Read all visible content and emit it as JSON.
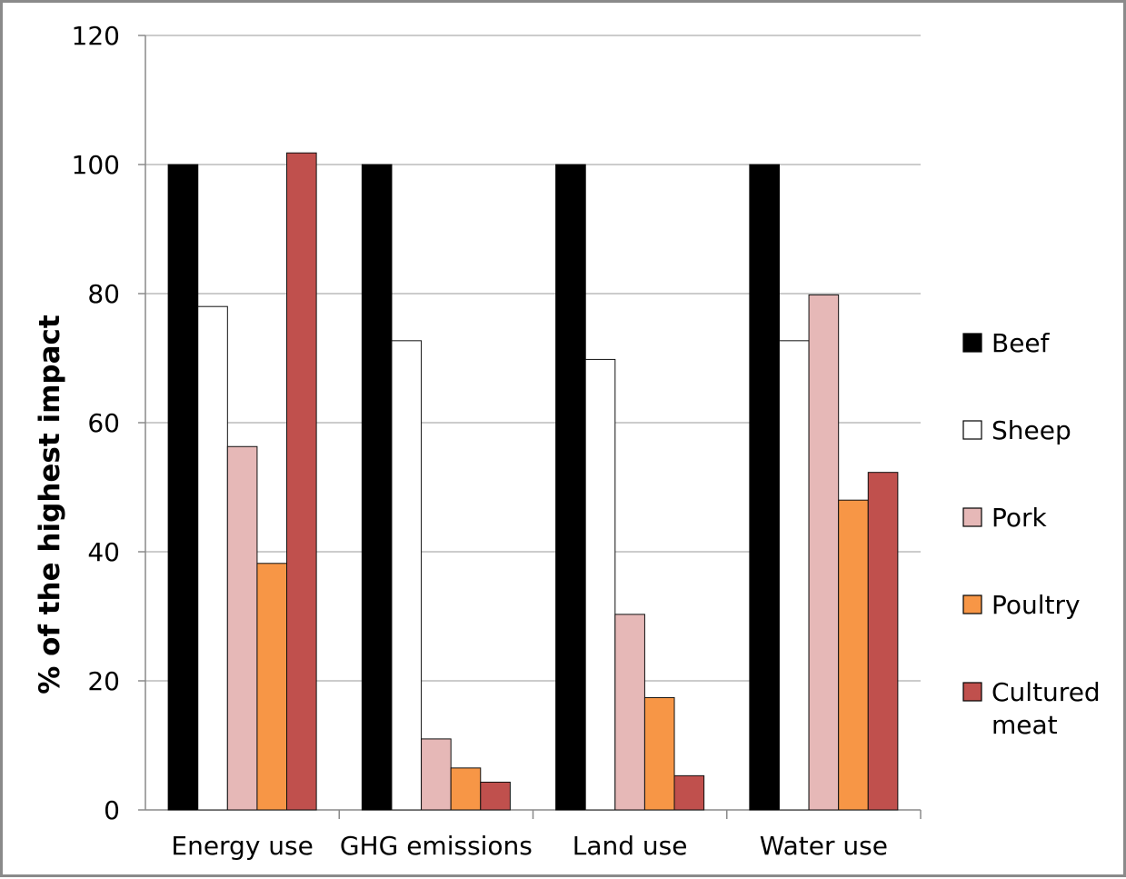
{
  "chart_data": {
    "type": "bar",
    "title": "",
    "xlabel": "",
    "ylabel": "% of the highest impact",
    "ylim": [
      0,
      120
    ],
    "yticks": [
      0,
      20,
      40,
      60,
      80,
      100,
      120
    ],
    "grid": true,
    "legend_position": "right",
    "categories": [
      "Energy use",
      "GHG emissions",
      "Land use",
      "Water use"
    ],
    "series": [
      {
        "name": "Beef",
        "legend_lines": [
          "Beef"
        ],
        "color": "#000000",
        "values": [
          100,
          100,
          100,
          100
        ]
      },
      {
        "name": "Sheep",
        "legend_lines": [
          "Sheep"
        ],
        "color": "#ffffff",
        "values": [
          78,
          72.7,
          69.8,
          72.7
        ]
      },
      {
        "name": "Pork",
        "legend_lines": [
          "Pork"
        ],
        "color": "#e6b8b7",
        "values": [
          56.3,
          11,
          30.3,
          79.8
        ]
      },
      {
        "name": "Poultry",
        "legend_lines": [
          "Poultry"
        ],
        "color": "#f79646",
        "values": [
          38.2,
          6.5,
          17.4,
          48
        ]
      },
      {
        "name": "Cultured meat",
        "legend_lines": [
          "Cultured",
          "meat"
        ],
        "color": "#c0504d",
        "values": [
          101.8,
          4.3,
          5.3,
          52.3
        ]
      }
    ]
  }
}
